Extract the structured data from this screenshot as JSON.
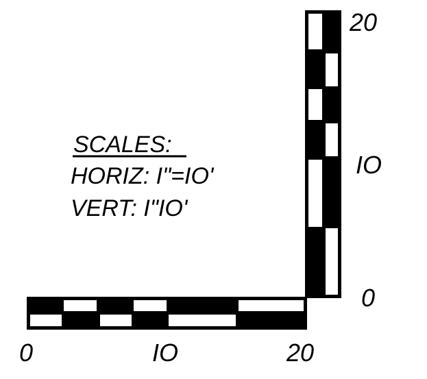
{
  "legend": {
    "title": "SCALES:",
    "horizontal": "HORIZ: I\"=IO'",
    "vertical": "VERT: I\"IO'"
  },
  "horizontal_scale": {
    "tick_labels": [
      "0",
      "IO",
      "20"
    ],
    "values": [
      0,
      10,
      20
    ]
  },
  "vertical_scale": {
    "tick_labels": [
      "0",
      "IO",
      "20"
    ],
    "values": [
      0,
      10,
      20
    ]
  },
  "colors": {
    "ink": "#000000",
    "paper": "#ffffff"
  }
}
